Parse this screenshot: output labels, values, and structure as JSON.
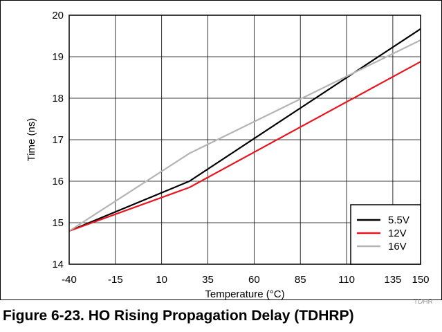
{
  "chart_data": {
    "type": "line",
    "title": "",
    "xlabel": "Temperature (°C)",
    "ylabel": "Time (ns)",
    "xlim": [
      -40,
      150
    ],
    "ylim": [
      14,
      20
    ],
    "x_ticks": [
      "-40",
      "-15",
      "10",
      "35",
      "60",
      "85",
      "110",
      "135",
      "150"
    ],
    "x_tick_values": [
      -40,
      -15,
      10,
      35,
      60,
      85,
      110,
      135,
      150
    ],
    "y_ticks": [
      "14",
      "15",
      "16",
      "17",
      "18",
      "19",
      "20"
    ],
    "y_tick_values": [
      14,
      15,
      16,
      17,
      18,
      19,
      20
    ],
    "grid": true,
    "legend_position": "bottom-right",
    "series": [
      {
        "name": "5.5V",
        "color": "#000000",
        "x": [
          -40,
          25,
          150
        ],
        "y": [
          14.8,
          16.0,
          19.67
        ]
      },
      {
        "name": "12V",
        "color": "#e8141e",
        "x": [
          -40,
          25,
          150
        ],
        "y": [
          14.8,
          15.85,
          18.88
        ]
      },
      {
        "name": "16V",
        "color": "#b4b4b4",
        "x": [
          -40,
          25,
          150
        ],
        "y": [
          14.8,
          16.67,
          19.4
        ]
      }
    ]
  },
  "caption": "Figure 6-23. HO Rising Propagation Delay (TDHRP)",
  "figure_id": "TDHR"
}
